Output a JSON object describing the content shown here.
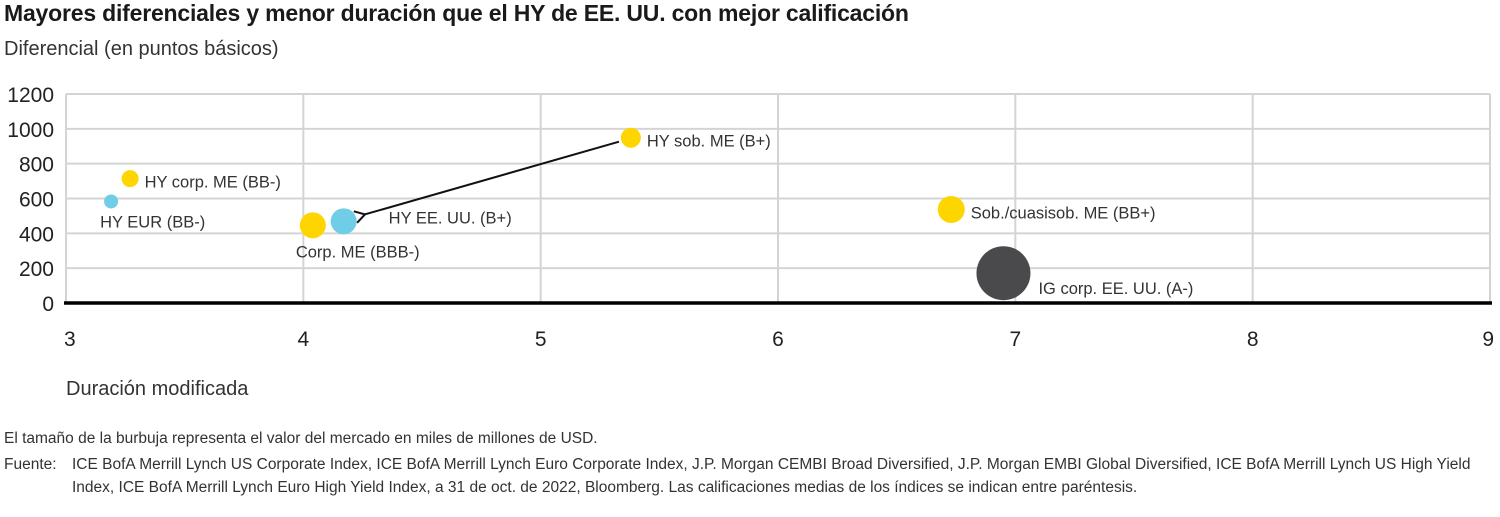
{
  "header": {
    "title": "Mayores diferenciales y menor duración que el HY de EE. UU. con mejor calificación",
    "subtitle": "Diferencial (en puntos básicos)"
  },
  "footer": {
    "note": "El tamaño de la burbuja representa el valor del mercado en miles de millones de USD.",
    "source_label": "Fuente:",
    "source_text": "ICE BofA Merrill Lynch US Corporate Index, ICE BofA Merrill Lynch Euro Corporate Index, J.P. Morgan CEMBI Broad Diversified, J.P. Morgan EMBI Global Diversified, ICE BofA Merrill Lynch US High Yield Index, ICE BofA Merrill Lynch Euro High Yield Index, a 31 de oct. de 2022, Bloomberg. Las calificaciones medias de los índices se indican entre paréntesis."
  },
  "colors": {
    "yellow": "#FFD500",
    "blue": "#6FCDE6",
    "dark": "#4A4A4C",
    "grid": "#D4D4D4",
    "axis": "#000000"
  },
  "chart_data": {
    "type": "scatter",
    "subtype": "bubble",
    "title": "Mayores diferenciales y menor duración que el HY de EE. UU. con mejor calificación",
    "xlabel": "Duración modificada",
    "ylabel": "Diferencial (en puntos básicos)",
    "xlim": [
      3,
      9
    ],
    "ylim": [
      0,
      1200
    ],
    "xticks": [
      3,
      4,
      5,
      6,
      7,
      8,
      9
    ],
    "yticks": [
      0,
      200,
      400,
      600,
      800,
      1000,
      1200
    ],
    "grid": true,
    "points": [
      {
        "label": "HY EUR (BB-)",
        "x": 3.19,
        "y": 583,
        "r": 7,
        "color": "blue",
        "label_pos": "below"
      },
      {
        "label": "HY corp. ME (BB-)",
        "x": 3.27,
        "y": 714,
        "r": 8.5,
        "color": "yellow",
        "label_pos": "right"
      },
      {
        "label": "Corp. ME (BBB-)",
        "x": 4.04,
        "y": 446,
        "r": 13,
        "color": "yellow",
        "label_pos": "below"
      },
      {
        "label": "HY EE. UU. (B+)",
        "x": 4.17,
        "y": 469,
        "r": 13,
        "color": "blue",
        "label_pos": "right-far"
      },
      {
        "label": "HY sob. ME (B+)",
        "x": 5.38,
        "y": 949,
        "r": 10,
        "color": "yellow",
        "label_pos": "right"
      },
      {
        "label": "Sob./cuasisob. ME (BB+)",
        "x": 6.73,
        "y": 537,
        "r": 13.5,
        "color": "yellow",
        "label_pos": "right"
      },
      {
        "label": "IG corp. EE. UU. (A-)",
        "x": 6.95,
        "y": 171,
        "r": 27,
        "color": "dark",
        "label_pos": "right-low"
      }
    ],
    "annotations": [
      {
        "type": "arrow",
        "from": {
          "x": 5.33,
          "y": 926
        },
        "to": {
          "x": 4.26,
          "y": 509
        }
      }
    ],
    "bubble_size_meaning": "Valor del mercado en miles de millones de USD"
  }
}
